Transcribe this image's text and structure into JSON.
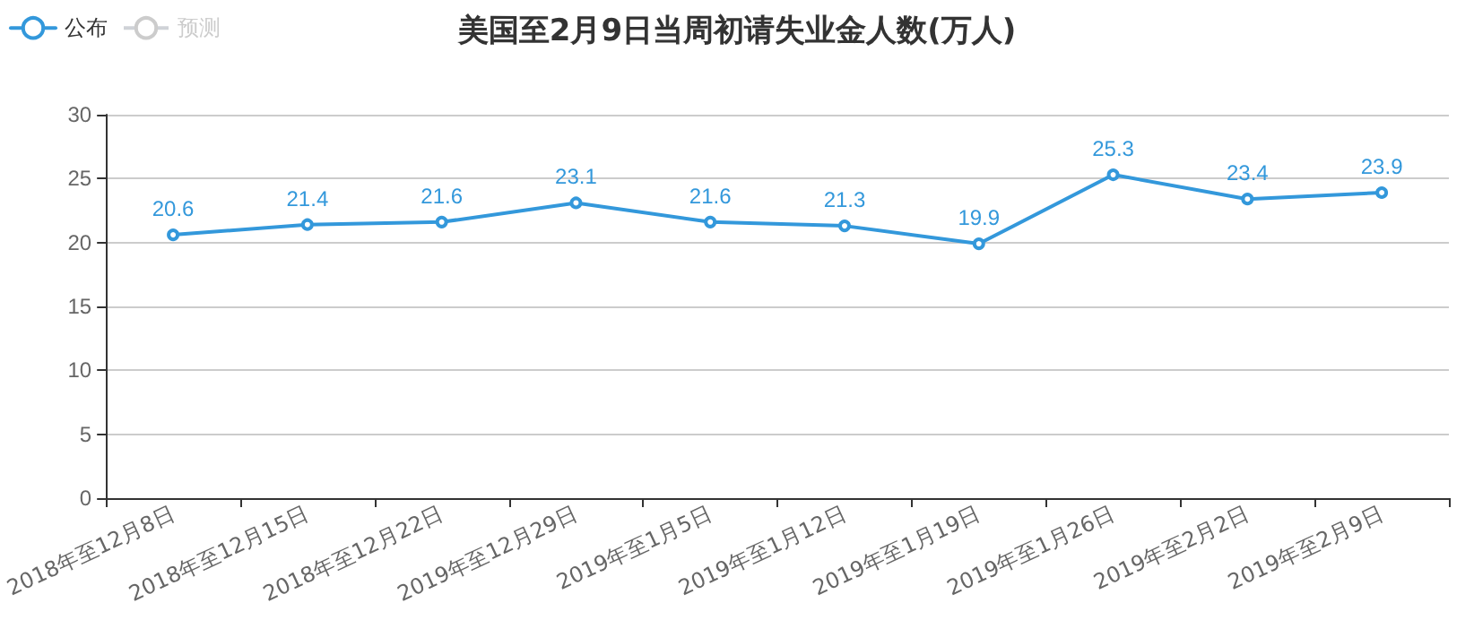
{
  "chart_data": {
    "type": "line",
    "title": "美国至2月9日当周初请失业金人数(万人)",
    "categories": [
      "2018年至12月8日",
      "2018年至12月15日",
      "2018年至12月22日",
      "2019年至12月29日",
      "2019年至1月5日",
      "2019年至1月12日",
      "2019年至1月19日",
      "2019年至1月26日",
      "2019年至2月2日",
      "2019年至2月9日"
    ],
    "series": [
      {
        "name": "公布",
        "color": "#3398db",
        "values": [
          20.6,
          21.4,
          21.6,
          23.1,
          21.6,
          21.3,
          19.9,
          25.3,
          23.4,
          23.9
        ]
      },
      {
        "name": "预测",
        "color": "#cccccc",
        "values": [
          null,
          null,
          null,
          null,
          null,
          null,
          null,
          null,
          null,
          null
        ]
      }
    ],
    "ylim": [
      0,
      30
    ],
    "yticks": [
      0,
      5,
      10,
      15,
      20,
      25,
      30
    ],
    "grid": "y",
    "legend": "top left",
    "marker": "circle",
    "line_style": "solid",
    "data_labels": true
  }
}
